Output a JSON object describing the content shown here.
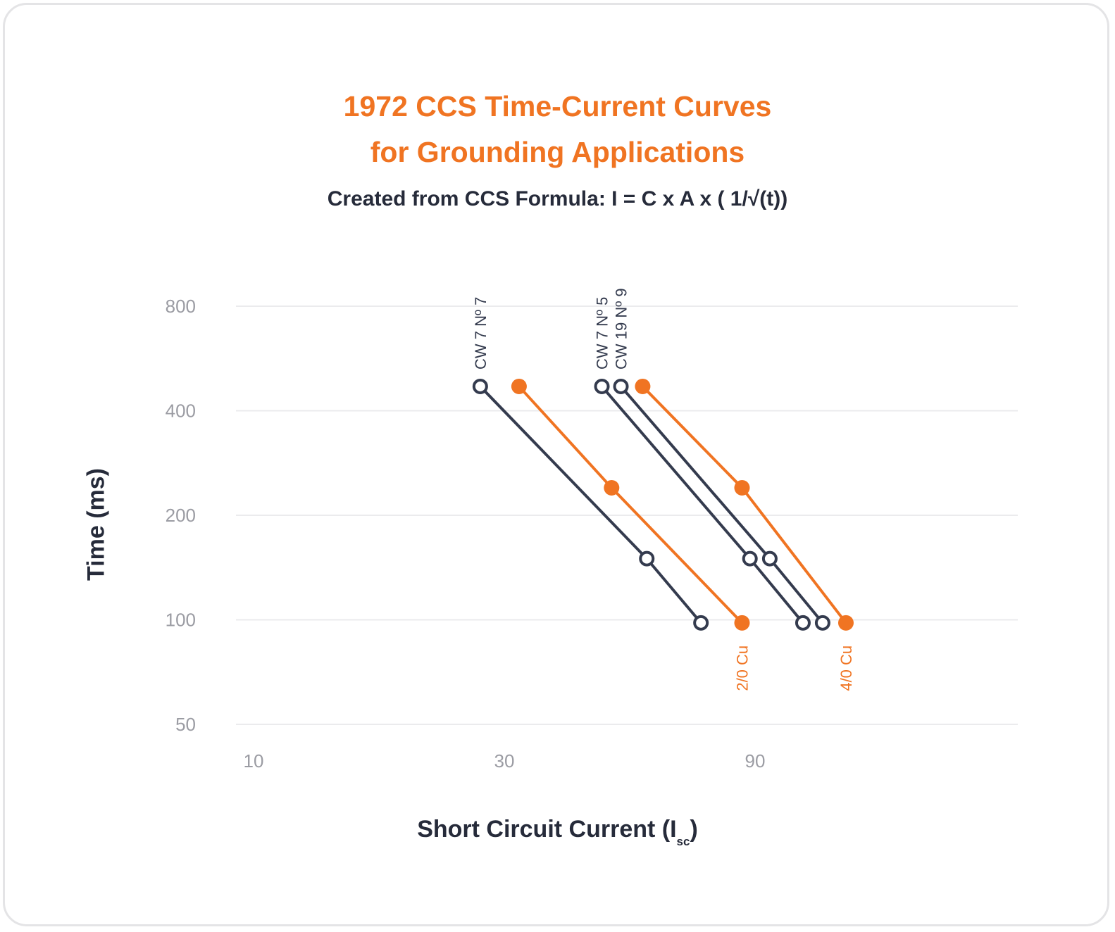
{
  "chart_data": {
    "type": "line",
    "title": [
      "1972 CCS Time-Current Curves",
      "for Grounding Applications"
    ],
    "subtitle": "Created from CCS Formula: I = C x A x ( 1/√(t))",
    "xlabel": {
      "main": "Short Circuit Current (I",
      "sub": "sc",
      "close": ")"
    },
    "ylabel": "Time (ms)",
    "x_scale": "log",
    "y_scale": "log",
    "xlim": [
      10,
      270
    ],
    "ylim": [
      50,
      800
    ],
    "x_ticks": [
      10,
      30,
      90
    ],
    "y_ticks": [
      800,
      400,
      200,
      100,
      50
    ],
    "grid": "horizontal",
    "colors": {
      "ccs": "#343b4e",
      "cu": "#f07422",
      "grid": "#ebebed",
      "tick": "#9b9ca3"
    },
    "series": [
      {
        "name": "CW 7 Nº 7",
        "color": "ccs",
        "marker": "open",
        "label_pos": "top",
        "points": [
          {
            "x": 27,
            "y": 470
          },
          {
            "x": 56,
            "y": 150
          },
          {
            "x": 71,
            "y": 98
          }
        ]
      },
      {
        "name": "2/0 Cu",
        "color": "cu",
        "marker": "filled",
        "label_pos": "bottom",
        "points": [
          {
            "x": 32,
            "y": 470
          },
          {
            "x": 48,
            "y": 240
          },
          {
            "x": 85,
            "y": 98
          }
        ]
      },
      {
        "name": "CW 7 Nº 5",
        "color": "ccs",
        "marker": "open",
        "label_pos": "top",
        "points": [
          {
            "x": 46,
            "y": 470
          },
          {
            "x": 88,
            "y": 150
          },
          {
            "x": 111,
            "y": 98
          }
        ]
      },
      {
        "name": "CW 19 Nº 9",
        "color": "ccs",
        "marker": "open",
        "label_pos": "top",
        "points": [
          {
            "x": 50,
            "y": 470
          },
          {
            "x": 96,
            "y": 150
          },
          {
            "x": 121,
            "y": 98
          }
        ]
      },
      {
        "name": "4/0 Cu",
        "color": "cu",
        "marker": "filled",
        "label_pos": "bottom",
        "points": [
          {
            "x": 55,
            "y": 470
          },
          {
            "x": 85,
            "y": 240
          },
          {
            "x": 134,
            "y": 98
          }
        ]
      }
    ]
  }
}
